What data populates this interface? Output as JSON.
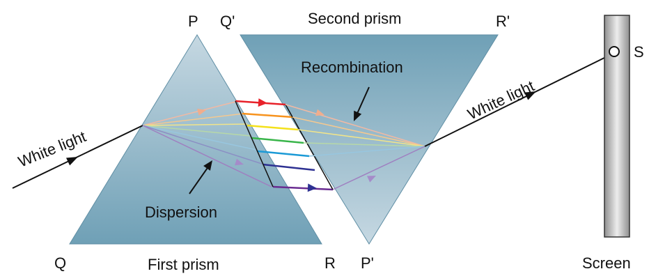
{
  "vertices": {
    "p": "P",
    "q": "Q",
    "r": "R",
    "p_prime": "P'",
    "q_prime": "Q'",
    "r_prime": "R'"
  },
  "labels": {
    "first_prism": "First prism",
    "second_prism": "Second prism",
    "dispersion": "Dispersion",
    "recombination": "Recombination",
    "white_light_in": "White light",
    "white_light_out": "White light",
    "screen": "Screen",
    "spot": "S"
  },
  "colors": {
    "prism_top": "#c6d8e2",
    "prism_bottom": "#6fa0b6",
    "screen_light": "#ededed",
    "screen_dark": "#8f8f8f",
    "ray": "#111111",
    "spectrum": [
      "#e8222a",
      "#f7931e",
      "#f4e11b",
      "#39b54a",
      "#1b9ad6",
      "#2e3192",
      "#6a2c91"
    ]
  }
}
